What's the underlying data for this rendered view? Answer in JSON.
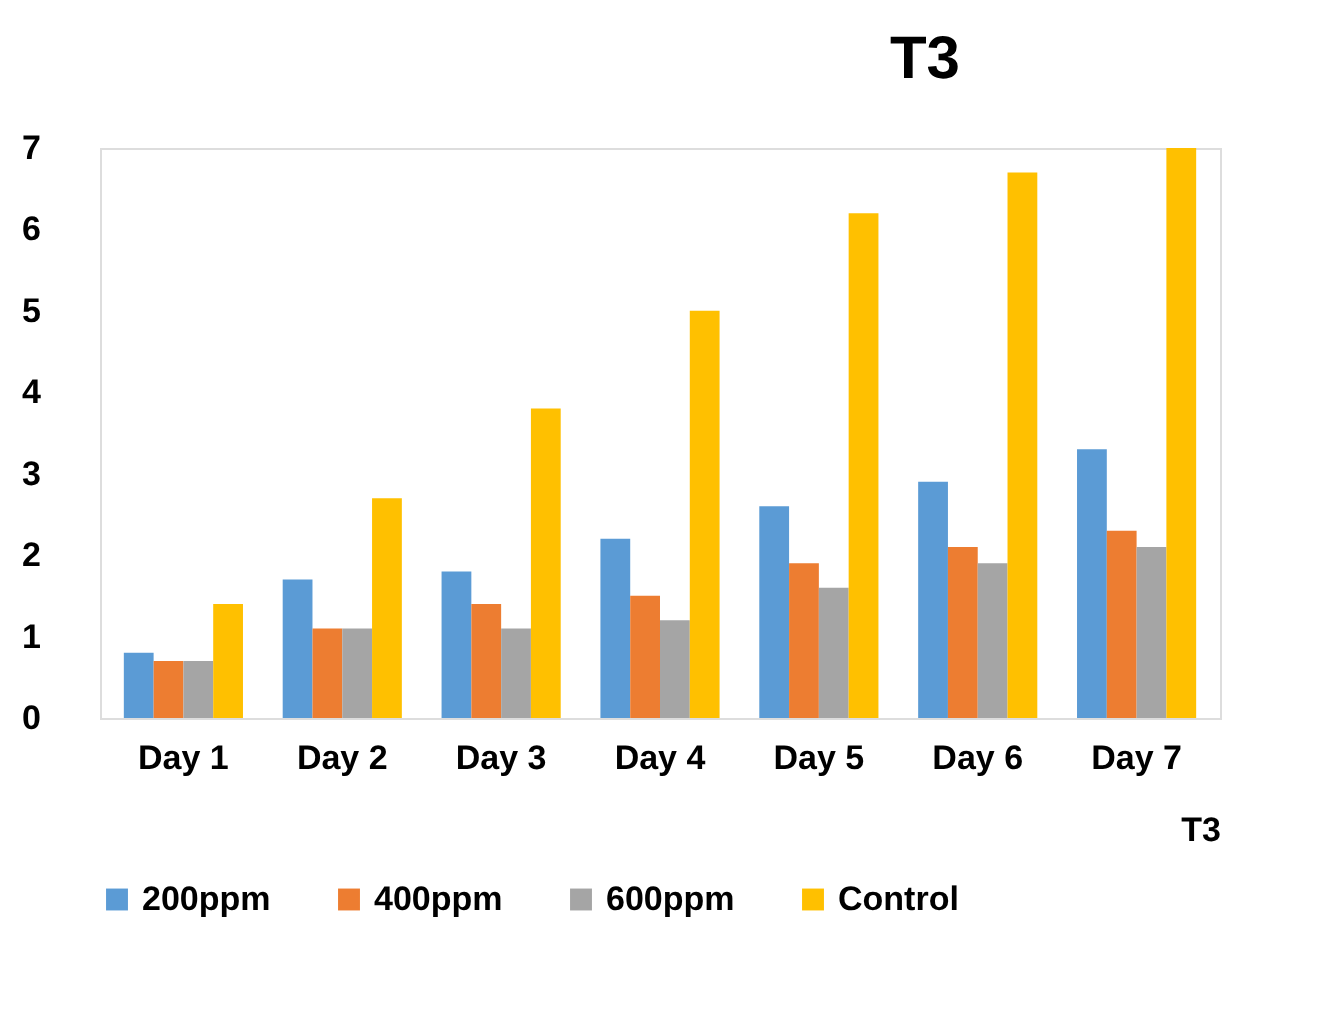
{
  "chart_data": {
    "type": "bar",
    "title": "T3",
    "xlabel": "T3",
    "categories": [
      "Day 1",
      "Day 2",
      "Day 3",
      "Day 4",
      "Day 5",
      "Day 6",
      "Day 7"
    ],
    "series": [
      {
        "name": "200ppm",
        "color": "#5b9bd5",
        "values": [
          0.8,
          1.7,
          1.8,
          2.2,
          2.6,
          2.9,
          3.3
        ]
      },
      {
        "name": "400ppm",
        "color": "#ed7d31",
        "values": [
          0.7,
          1.1,
          1.4,
          1.5,
          1.9,
          2.1,
          2.3
        ]
      },
      {
        "name": "600ppm",
        "color": "#a5a5a5",
        "values": [
          0.7,
          1.1,
          1.1,
          1.2,
          1.6,
          1.9,
          2.1
        ]
      },
      {
        "name": "Control",
        "color": "#ffc000",
        "values": [
          1.4,
          2.7,
          3.8,
          5.0,
          6.2,
          6.7,
          7.0
        ]
      }
    ],
    "ylim": [
      0,
      7
    ],
    "yticks": [
      0,
      1,
      2,
      3,
      4,
      5,
      6,
      7
    ],
    "grid": false,
    "legend": "bottom"
  }
}
